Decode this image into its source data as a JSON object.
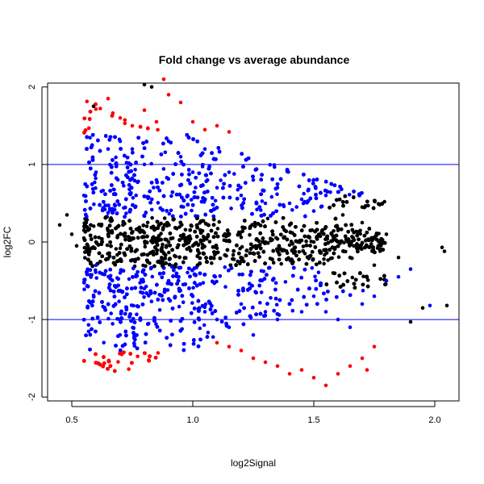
{
  "chart_data": {
    "type": "scatter",
    "title": "Fold change vs average abundance",
    "xlabel": "log2Signal",
    "ylabel": "log2FC",
    "xlim": [
      0.4,
      2.1
    ],
    "ylim": [
      -2.05,
      2.05
    ],
    "x_ticks": [
      "0.5",
      "1.0",
      "1.5",
      "2.0"
    ],
    "y_ticks": [
      "-2",
      "-1",
      "0",
      "1",
      "2"
    ],
    "reference_lines": {
      "orientation": "horizontal",
      "y": [
        1,
        -1
      ],
      "color": "#0000ff"
    },
    "grid": false,
    "legend": "none",
    "colors": {
      "central_band": "#000000",
      "moderate_change": "#0000ff",
      "extreme_change": "#ff0000",
      "outlier": "#000000"
    },
    "series": [
      {
        "color_key": "central_band",
        "points": [
          [
            0.45,
            0.22
          ],
          [
            0.48,
            0.35
          ],
          [
            0.5,
            0.1
          ],
          [
            0.52,
            -0.05
          ],
          [
            0.55,
            0.05
          ],
          [
            0.6,
            0.0
          ],
          [
            0.65,
            0.1
          ],
          [
            0.7,
            -0.08
          ],
          [
            0.75,
            0.05
          ],
          [
            0.8,
            0.12
          ],
          [
            0.85,
            -0.1
          ],
          [
            0.9,
            0.0
          ],
          [
            0.95,
            0.08
          ],
          [
            1.0,
            -0.05
          ],
          [
            1.05,
            0.05
          ],
          [
            1.1,
            -0.08
          ],
          [
            1.15,
            0.02
          ],
          [
            1.2,
            0.06
          ],
          [
            1.25,
            -0.06
          ],
          [
            1.3,
            0.0
          ],
          [
            1.35,
            0.04
          ],
          [
            1.4,
            -0.04
          ],
          [
            1.45,
            0.02
          ],
          [
            1.5,
            0.0
          ],
          [
            1.55,
            -0.1
          ],
          [
            1.6,
            0.15
          ],
          [
            1.65,
            -0.2
          ],
          [
            1.7,
            0.25
          ],
          [
            1.75,
            -0.3
          ],
          [
            1.8,
            0.1
          ],
          [
            1.85,
            -0.2
          ],
          [
            1.9,
            -1.03
          ],
          [
            1.95,
            -0.85
          ],
          [
            2.03,
            -0.07
          ],
          [
            2.04,
            -0.12
          ],
          [
            2.05,
            -0.82
          ],
          [
            0.8,
            2.03
          ],
          [
            0.83,
            2.0
          ],
          [
            0.59,
            1.75
          ],
          [
            1.62,
            0.35
          ],
          [
            1.7,
            0.45
          ],
          [
            1.58,
            -0.4
          ]
        ]
      },
      {
        "color_key": "moderate_change",
        "points": [
          [
            0.55,
            0.6
          ],
          [
            0.6,
            0.9
          ],
          [
            0.65,
            1.2
          ],
          [
            0.7,
            1.3
          ],
          [
            0.75,
            1.2
          ],
          [
            0.8,
            1.0
          ],
          [
            0.85,
            0.8
          ],
          [
            0.9,
            1.3
          ],
          [
            0.95,
            1.1
          ],
          [
            1.0,
            0.9
          ],
          [
            1.05,
            1.2
          ],
          [
            1.1,
            0.7
          ],
          [
            1.15,
            0.9
          ],
          [
            1.2,
            0.6
          ],
          [
            1.25,
            0.8
          ],
          [
            1.3,
            0.5
          ],
          [
            1.35,
            0.7
          ],
          [
            1.4,
            0.5
          ],
          [
            1.45,
            0.55
          ],
          [
            1.5,
            0.4
          ],
          [
            1.55,
            0.6
          ],
          [
            0.6,
            -0.3
          ],
          [
            0.7,
            -0.4
          ],
          [
            0.8,
            -0.6
          ],
          [
            0.9,
            -0.5
          ],
          [
            1.0,
            -0.7
          ],
          [
            1.05,
            -0.9
          ],
          [
            1.1,
            -1.0
          ],
          [
            1.15,
            -1.1
          ],
          [
            1.2,
            -0.8
          ],
          [
            1.25,
            -1.2
          ],
          [
            1.3,
            -0.9
          ],
          [
            1.35,
            -1.0
          ],
          [
            1.4,
            -0.8
          ],
          [
            1.45,
            -0.9
          ],
          [
            1.5,
            -0.7
          ],
          [
            1.55,
            -0.9
          ],
          [
            1.6,
            -1.0
          ],
          [
            1.65,
            -1.1
          ],
          [
            1.7,
            -0.8
          ],
          [
            1.75,
            -0.7
          ],
          [
            1.8,
            -0.5
          ],
          [
            1.85,
            -0.45
          ],
          [
            1.9,
            -0.35
          ],
          [
            1.98,
            -0.82
          ]
        ]
      },
      {
        "color_key": "extreme_change",
        "points": [
          [
            0.65,
            1.85
          ],
          [
            0.7,
            1.6
          ],
          [
            0.75,
            1.5
          ],
          [
            0.8,
            1.7
          ],
          [
            0.85,
            1.55
          ],
          [
            0.88,
            2.1
          ],
          [
            0.9,
            1.9
          ],
          [
            0.95,
            1.8
          ],
          [
            1.0,
            1.55
          ],
          [
            1.05,
            1.45
          ],
          [
            1.1,
            1.5
          ],
          [
            1.15,
            1.42
          ],
          [
            1.1,
            -1.3
          ],
          [
            1.15,
            -1.35
          ],
          [
            1.2,
            -1.4
          ],
          [
            1.25,
            -1.5
          ],
          [
            1.3,
            -1.55
          ],
          [
            1.35,
            -1.6
          ],
          [
            1.4,
            -1.7
          ],
          [
            1.45,
            -1.65
          ],
          [
            1.5,
            -1.75
          ],
          [
            1.55,
            -1.85
          ],
          [
            1.6,
            -1.7
          ],
          [
            1.65,
            -1.6
          ],
          [
            1.7,
            -1.5
          ],
          [
            1.72,
            -1.65
          ],
          [
            1.75,
            -1.35
          ]
        ]
      }
    ]
  }
}
